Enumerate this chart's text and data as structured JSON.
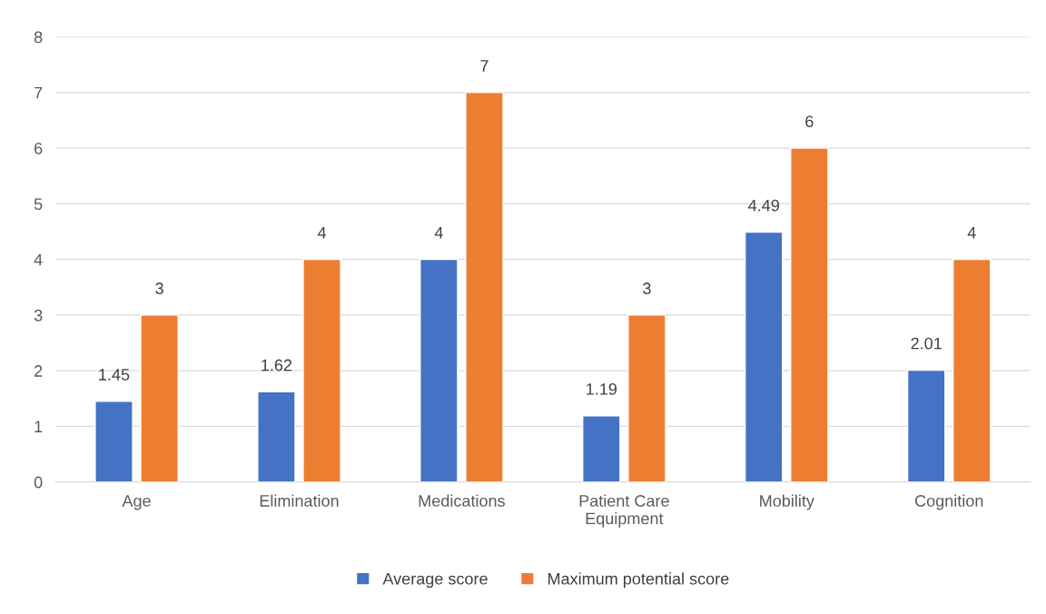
{
  "chart_data": {
    "type": "bar",
    "categories": [
      "Age",
      "Elimination",
      "Medications",
      "Patient Care\nEquipment",
      "Mobility",
      "Cognition"
    ],
    "series": [
      {
        "name": "Average score",
        "color": "#4472c4",
        "values": [
          1.45,
          1.62,
          4,
          1.19,
          4.49,
          2.01
        ]
      },
      {
        "name": "Maximum potential score",
        "color": "#ed7d31",
        "values": [
          3,
          4,
          7,
          3,
          6,
          4
        ]
      }
    ],
    "ylim": [
      0,
      8
    ],
    "yticks": [
      0,
      1,
      2,
      3,
      4,
      5,
      6,
      7,
      8
    ],
    "grid": "y",
    "legend": "bottom",
    "data_labels": true
  }
}
